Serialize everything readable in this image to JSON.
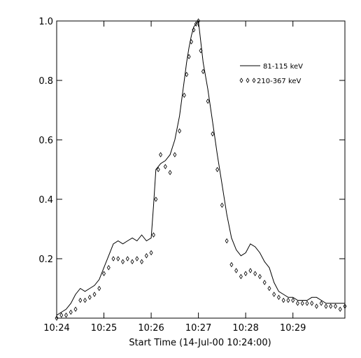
{
  "chart_data": {
    "type": "line",
    "xlabel": "Start Time (14-Jul-00 10:24:00)",
    "ylabel": "",
    "xunit": "minutes after 10:24:00",
    "xlim": [
      0,
      6.1
    ],
    "ylim": [
      0,
      1.0
    ],
    "x_ticks": [
      {
        "value": 0,
        "label": "10:24"
      },
      {
        "value": 1,
        "label": "10:25"
      },
      {
        "value": 2,
        "label": "10:26"
      },
      {
        "value": 3,
        "label": "10:27"
      },
      {
        "value": 4,
        "label": "10:28"
      },
      {
        "value": 5,
        "label": "10:29"
      }
    ],
    "y_ticks": [
      {
        "value": 0.2,
        "label": "0.2"
      },
      {
        "value": 0.4,
        "label": "0.4"
      },
      {
        "value": 0.6,
        "label": "0.6"
      },
      {
        "value": 0.8,
        "label": "0.8"
      },
      {
        "value": 1.0,
        "label": "1.0"
      }
    ],
    "legend_position": "top-right",
    "series": [
      {
        "name": "81-115 keV",
        "style": "solid-line",
        "color": "#000000",
        "x": [
          0.0,
          0.1,
          0.2,
          0.3,
          0.4,
          0.5,
          0.6,
          0.7,
          0.8,
          0.9,
          1.0,
          1.1,
          1.2,
          1.3,
          1.4,
          1.5,
          1.6,
          1.7,
          1.8,
          1.9,
          2.0,
          2.05,
          2.1,
          2.15,
          2.2,
          2.3,
          2.4,
          2.5,
          2.6,
          2.7,
          2.75,
          2.8,
          2.85,
          2.9,
          2.95,
          3.0,
          3.05,
          3.1,
          3.2,
          3.3,
          3.4,
          3.5,
          3.6,
          3.7,
          3.8,
          3.9,
          4.0,
          4.1,
          4.2,
          4.3,
          4.4,
          4.5,
          4.6,
          4.7,
          4.8,
          4.9,
          5.0,
          5.1,
          5.2,
          5.3,
          5.4,
          5.5,
          5.6,
          5.7,
          5.8,
          5.9,
          6.0,
          6.1
        ],
        "y": [
          0.01,
          0.02,
          0.03,
          0.05,
          0.08,
          0.1,
          0.09,
          0.1,
          0.11,
          0.13,
          0.17,
          0.21,
          0.25,
          0.26,
          0.25,
          0.26,
          0.27,
          0.26,
          0.28,
          0.26,
          0.27,
          0.38,
          0.5,
          0.51,
          0.52,
          0.53,
          0.55,
          0.6,
          0.68,
          0.8,
          0.86,
          0.91,
          0.95,
          0.98,
          0.99,
          1.0,
          0.93,
          0.86,
          0.77,
          0.66,
          0.55,
          0.45,
          0.35,
          0.27,
          0.23,
          0.21,
          0.22,
          0.25,
          0.24,
          0.22,
          0.19,
          0.17,
          0.12,
          0.09,
          0.08,
          0.07,
          0.07,
          0.06,
          0.06,
          0.06,
          0.07,
          0.07,
          0.06,
          0.05,
          0.05,
          0.05,
          0.05,
          0.05
        ]
      },
      {
        "name": "210-367 keV",
        "style": "diamond-markers",
        "color": "#000000",
        "x": [
          0.0,
          0.1,
          0.2,
          0.3,
          0.4,
          0.5,
          0.6,
          0.7,
          0.8,
          0.9,
          1.0,
          1.1,
          1.2,
          1.3,
          1.4,
          1.5,
          1.6,
          1.7,
          1.8,
          1.9,
          2.0,
          2.05,
          2.1,
          2.15,
          2.2,
          2.3,
          2.4,
          2.5,
          2.6,
          2.7,
          2.75,
          2.8,
          2.85,
          2.9,
          2.95,
          3.0,
          3.05,
          3.1,
          3.2,
          3.3,
          3.4,
          3.5,
          3.6,
          3.7,
          3.8,
          3.9,
          4.0,
          4.1,
          4.2,
          4.3,
          4.4,
          4.5,
          4.6,
          4.7,
          4.8,
          4.9,
          5.0,
          5.1,
          5.2,
          5.3,
          5.4,
          5.5,
          5.6,
          5.7,
          5.8,
          5.9,
          6.0,
          6.1
        ],
        "y": [
          0.0,
          0.01,
          0.01,
          0.02,
          0.03,
          0.06,
          0.06,
          0.07,
          0.08,
          0.1,
          0.15,
          0.17,
          0.2,
          0.2,
          0.19,
          0.2,
          0.19,
          0.2,
          0.19,
          0.21,
          0.22,
          0.28,
          0.4,
          0.5,
          0.55,
          0.51,
          0.49,
          0.55,
          0.63,
          0.75,
          0.82,
          0.88,
          0.93,
          0.97,
          0.99,
          1.0,
          0.9,
          0.83,
          0.73,
          0.62,
          0.5,
          0.38,
          0.26,
          0.18,
          0.16,
          0.14,
          0.15,
          0.16,
          0.15,
          0.14,
          0.12,
          0.1,
          0.08,
          0.07,
          0.06,
          0.06,
          0.06,
          0.05,
          0.05,
          0.05,
          0.05,
          0.04,
          0.05,
          0.04,
          0.04,
          0.04,
          0.03,
          0.04
        ]
      }
    ]
  }
}
